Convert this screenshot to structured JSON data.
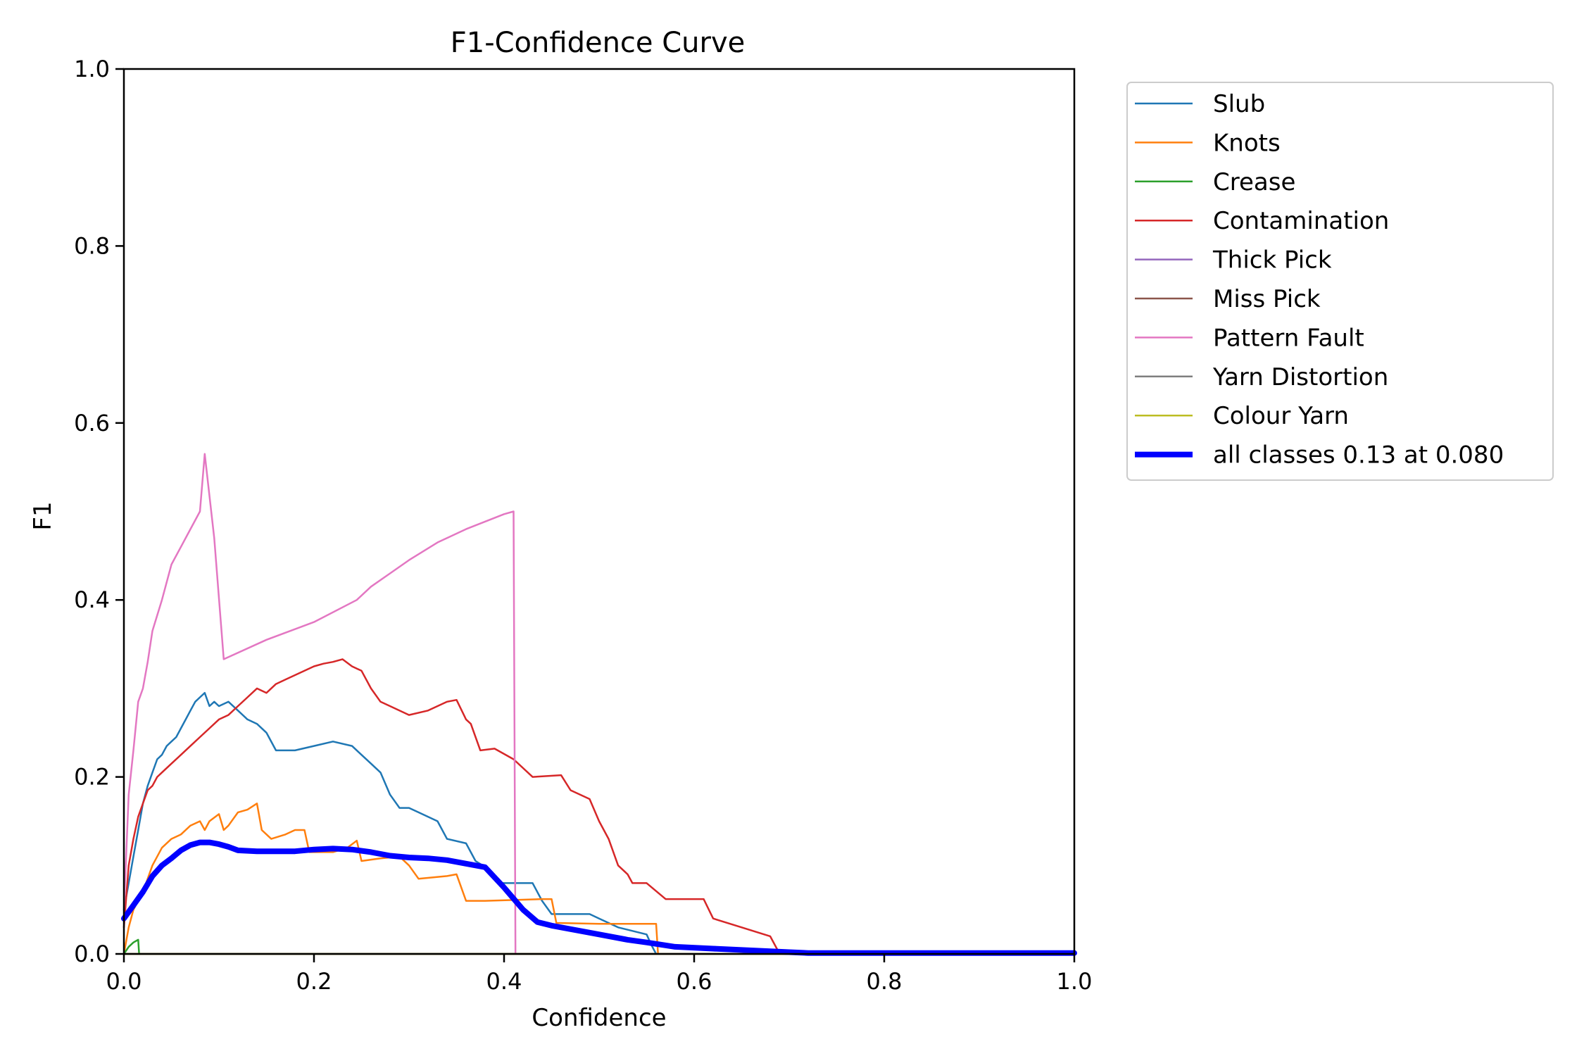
{
  "chart_data": {
    "type": "line",
    "title": "F1-Confidence Curve",
    "xlabel": "Confidence",
    "ylabel": "F1",
    "xlim": [
      0,
      1
    ],
    "ylim": [
      0,
      1
    ],
    "grid": false,
    "legend_position": "outside-right",
    "x_ticks": [
      "0.0",
      "0.2",
      "0.4",
      "0.6",
      "0.8",
      "1.0"
    ],
    "y_ticks": [
      "0.0",
      "0.2",
      "0.4",
      "0.6",
      "0.8",
      "1.0"
    ],
    "series": [
      {
        "name": "Slub",
        "color": "#1f77b4",
        "points": [
          [
            0.0,
            0.05
          ],
          [
            0.005,
            0.08
          ],
          [
            0.01,
            0.11
          ],
          [
            0.015,
            0.14
          ],
          [
            0.02,
            0.17
          ],
          [
            0.025,
            0.19
          ],
          [
            0.03,
            0.205
          ],
          [
            0.035,
            0.22
          ],
          [
            0.04,
            0.225
          ],
          [
            0.045,
            0.235
          ],
          [
            0.05,
            0.24
          ],
          [
            0.055,
            0.245
          ],
          [
            0.06,
            0.255
          ],
          [
            0.065,
            0.265
          ],
          [
            0.07,
            0.275
          ],
          [
            0.075,
            0.285
          ],
          [
            0.08,
            0.29
          ],
          [
            0.085,
            0.295
          ],
          [
            0.09,
            0.28
          ],
          [
            0.095,
            0.285
          ],
          [
            0.1,
            0.28
          ],
          [
            0.11,
            0.285
          ],
          [
            0.12,
            0.275
          ],
          [
            0.13,
            0.265
          ],
          [
            0.14,
            0.26
          ],
          [
            0.15,
            0.25
          ],
          [
            0.16,
            0.23
          ],
          [
            0.18,
            0.23
          ],
          [
            0.2,
            0.235
          ],
          [
            0.22,
            0.24
          ],
          [
            0.24,
            0.235
          ],
          [
            0.25,
            0.225
          ],
          [
            0.26,
            0.215
          ],
          [
            0.27,
            0.205
          ],
          [
            0.28,
            0.18
          ],
          [
            0.29,
            0.165
          ],
          [
            0.3,
            0.165
          ],
          [
            0.31,
            0.16
          ],
          [
            0.33,
            0.15
          ],
          [
            0.34,
            0.13
          ],
          [
            0.36,
            0.125
          ],
          [
            0.37,
            0.105
          ],
          [
            0.385,
            0.095
          ],
          [
            0.395,
            0.08
          ],
          [
            0.41,
            0.08
          ],
          [
            0.43,
            0.08
          ],
          [
            0.44,
            0.06
          ],
          [
            0.45,
            0.045
          ],
          [
            0.49,
            0.045
          ],
          [
            0.5,
            0.04
          ],
          [
            0.52,
            0.03
          ],
          [
            0.55,
            0.022
          ],
          [
            0.555,
            0.01
          ],
          [
            0.56,
            0.0
          ],
          [
            0.6,
            0.0
          ],
          [
            1.0,
            0.0
          ]
        ]
      },
      {
        "name": "Knots",
        "color": "#ff7f0e",
        "points": [
          [
            0.0,
            0.0
          ],
          [
            0.005,
            0.03
          ],
          [
            0.01,
            0.05
          ],
          [
            0.02,
            0.07
          ],
          [
            0.03,
            0.1
          ],
          [
            0.04,
            0.12
          ],
          [
            0.05,
            0.13
          ],
          [
            0.06,
            0.135
          ],
          [
            0.07,
            0.145
          ],
          [
            0.08,
            0.15
          ],
          [
            0.085,
            0.14
          ],
          [
            0.09,
            0.15
          ],
          [
            0.1,
            0.158
          ],
          [
            0.105,
            0.14
          ],
          [
            0.11,
            0.145
          ],
          [
            0.12,
            0.16
          ],
          [
            0.13,
            0.163
          ],
          [
            0.14,
            0.17
          ],
          [
            0.145,
            0.14
          ],
          [
            0.155,
            0.13
          ],
          [
            0.17,
            0.135
          ],
          [
            0.18,
            0.14
          ],
          [
            0.19,
            0.14
          ],
          [
            0.195,
            0.115
          ],
          [
            0.21,
            0.115
          ],
          [
            0.22,
            0.115
          ],
          [
            0.235,
            0.12
          ],
          [
            0.245,
            0.128
          ],
          [
            0.25,
            0.105
          ],
          [
            0.27,
            0.108
          ],
          [
            0.29,
            0.11
          ],
          [
            0.3,
            0.1
          ],
          [
            0.31,
            0.085
          ],
          [
            0.34,
            0.088
          ],
          [
            0.35,
            0.09
          ],
          [
            0.36,
            0.06
          ],
          [
            0.38,
            0.06
          ],
          [
            0.44,
            0.062
          ],
          [
            0.45,
            0.062
          ],
          [
            0.455,
            0.035
          ],
          [
            0.5,
            0.034
          ],
          [
            0.56,
            0.034
          ],
          [
            0.562,
            0.0
          ],
          [
            1.0,
            0.0
          ]
        ]
      },
      {
        "name": "Crease",
        "color": "#2ca02c",
        "points": [
          [
            0.0,
            0.0
          ],
          [
            0.005,
            0.008
          ],
          [
            0.01,
            0.013
          ],
          [
            0.015,
            0.016
          ],
          [
            0.016,
            0.0
          ],
          [
            1.0,
            0.0
          ]
        ]
      },
      {
        "name": "Contamination",
        "color": "#d62728",
        "points": [
          [
            0.0,
            0.03
          ],
          [
            0.005,
            0.1
          ],
          [
            0.01,
            0.13
          ],
          [
            0.015,
            0.155
          ],
          [
            0.02,
            0.17
          ],
          [
            0.025,
            0.185
          ],
          [
            0.03,
            0.19
          ],
          [
            0.035,
            0.2
          ],
          [
            0.04,
            0.205
          ],
          [
            0.05,
            0.215
          ],
          [
            0.06,
            0.225
          ],
          [
            0.07,
            0.235
          ],
          [
            0.08,
            0.245
          ],
          [
            0.09,
            0.255
          ],
          [
            0.1,
            0.265
          ],
          [
            0.11,
            0.27
          ],
          [
            0.12,
            0.28
          ],
          [
            0.13,
            0.29
          ],
          [
            0.14,
            0.3
          ],
          [
            0.15,
            0.295
          ],
          [
            0.16,
            0.305
          ],
          [
            0.17,
            0.31
          ],
          [
            0.18,
            0.315
          ],
          [
            0.19,
            0.32
          ],
          [
            0.2,
            0.325
          ],
          [
            0.21,
            0.328
          ],
          [
            0.22,
            0.33
          ],
          [
            0.23,
            0.333
          ],
          [
            0.24,
            0.325
          ],
          [
            0.25,
            0.32
          ],
          [
            0.26,
            0.3
          ],
          [
            0.27,
            0.285
          ],
          [
            0.28,
            0.28
          ],
          [
            0.3,
            0.27
          ],
          [
            0.32,
            0.275
          ],
          [
            0.34,
            0.285
          ],
          [
            0.35,
            0.287
          ],
          [
            0.36,
            0.265
          ],
          [
            0.365,
            0.26
          ],
          [
            0.375,
            0.23
          ],
          [
            0.39,
            0.232
          ],
          [
            0.41,
            0.22
          ],
          [
            0.43,
            0.2
          ],
          [
            0.46,
            0.202
          ],
          [
            0.47,
            0.185
          ],
          [
            0.49,
            0.175
          ],
          [
            0.5,
            0.15
          ],
          [
            0.51,
            0.13
          ],
          [
            0.52,
            0.1
          ],
          [
            0.53,
            0.09
          ],
          [
            0.535,
            0.08
          ],
          [
            0.55,
            0.08
          ],
          [
            0.57,
            0.062
          ],
          [
            0.6,
            0.062
          ],
          [
            0.61,
            0.062
          ],
          [
            0.62,
            0.04
          ],
          [
            0.65,
            0.03
          ],
          [
            0.68,
            0.02
          ],
          [
            0.69,
            0.0
          ],
          [
            1.0,
            0.0
          ]
        ]
      },
      {
        "name": "Thick Pick",
        "color": "#9467bd",
        "points": [
          [
            0.0,
            0.0
          ],
          [
            1.0,
            0.0
          ]
        ]
      },
      {
        "name": "Miss Pick",
        "color": "#8c564b",
        "points": [
          [
            0.0,
            0.0
          ],
          [
            1.0,
            0.0
          ]
        ]
      },
      {
        "name": "Pattern Fault",
        "color": "#e377c2",
        "points": [
          [
            0.0,
            0.05
          ],
          [
            0.005,
            0.18
          ],
          [
            0.01,
            0.23
          ],
          [
            0.015,
            0.285
          ],
          [
            0.02,
            0.3
          ],
          [
            0.025,
            0.33
          ],
          [
            0.03,
            0.365
          ],
          [
            0.04,
            0.4
          ],
          [
            0.05,
            0.44
          ],
          [
            0.06,
            0.46
          ],
          [
            0.07,
            0.48
          ],
          [
            0.08,
            0.5
          ],
          [
            0.085,
            0.565
          ],
          [
            0.095,
            0.47
          ],
          [
            0.105,
            0.333
          ],
          [
            0.15,
            0.355
          ],
          [
            0.2,
            0.375
          ],
          [
            0.245,
            0.4
          ],
          [
            0.26,
            0.415
          ],
          [
            0.28,
            0.43
          ],
          [
            0.3,
            0.445
          ],
          [
            0.33,
            0.465
          ],
          [
            0.36,
            0.48
          ],
          [
            0.4,
            0.497
          ],
          [
            0.41,
            0.5
          ],
          [
            0.412,
            0.0
          ],
          [
            1.0,
            0.0
          ]
        ]
      },
      {
        "name": "Yarn Distortion",
        "color": "#7f7f7f",
        "points": [
          [
            0.0,
            0.0
          ],
          [
            1.0,
            0.0
          ]
        ]
      },
      {
        "name": "Colour Yarn",
        "color": "#bcbd22",
        "points": [
          [
            0.0,
            0.0
          ],
          [
            1.0,
            0.0
          ]
        ]
      },
      {
        "name": "all classes 0.13 at 0.080",
        "color": "#0000ff",
        "thick": true,
        "points": [
          [
            0.0,
            0.04
          ],
          [
            0.01,
            0.055
          ],
          [
            0.02,
            0.07
          ],
          [
            0.03,
            0.088
          ],
          [
            0.04,
            0.1
          ],
          [
            0.05,
            0.108
          ],
          [
            0.06,
            0.117
          ],
          [
            0.07,
            0.123
          ],
          [
            0.08,
            0.126
          ],
          [
            0.09,
            0.126
          ],
          [
            0.1,
            0.124
          ],
          [
            0.11,
            0.121
          ],
          [
            0.12,
            0.117
          ],
          [
            0.14,
            0.116
          ],
          [
            0.16,
            0.116
          ],
          [
            0.18,
            0.116
          ],
          [
            0.2,
            0.118
          ],
          [
            0.22,
            0.119
          ],
          [
            0.24,
            0.118
          ],
          [
            0.26,
            0.115
          ],
          [
            0.28,
            0.111
          ],
          [
            0.3,
            0.109
          ],
          [
            0.32,
            0.108
          ],
          [
            0.34,
            0.106
          ],
          [
            0.36,
            0.102
          ],
          [
            0.38,
            0.098
          ],
          [
            0.4,
            0.075
          ],
          [
            0.42,
            0.05
          ],
          [
            0.435,
            0.036
          ],
          [
            0.45,
            0.032
          ],
          [
            0.47,
            0.028
          ],
          [
            0.5,
            0.022
          ],
          [
            0.53,
            0.016
          ],
          [
            0.55,
            0.013
          ],
          [
            0.58,
            0.008
          ],
          [
            0.62,
            0.006
          ],
          [
            0.66,
            0.004
          ],
          [
            0.7,
            0.002
          ],
          [
            0.72,
            0.001
          ],
          [
            1.0,
            0.001
          ]
        ]
      }
    ]
  }
}
